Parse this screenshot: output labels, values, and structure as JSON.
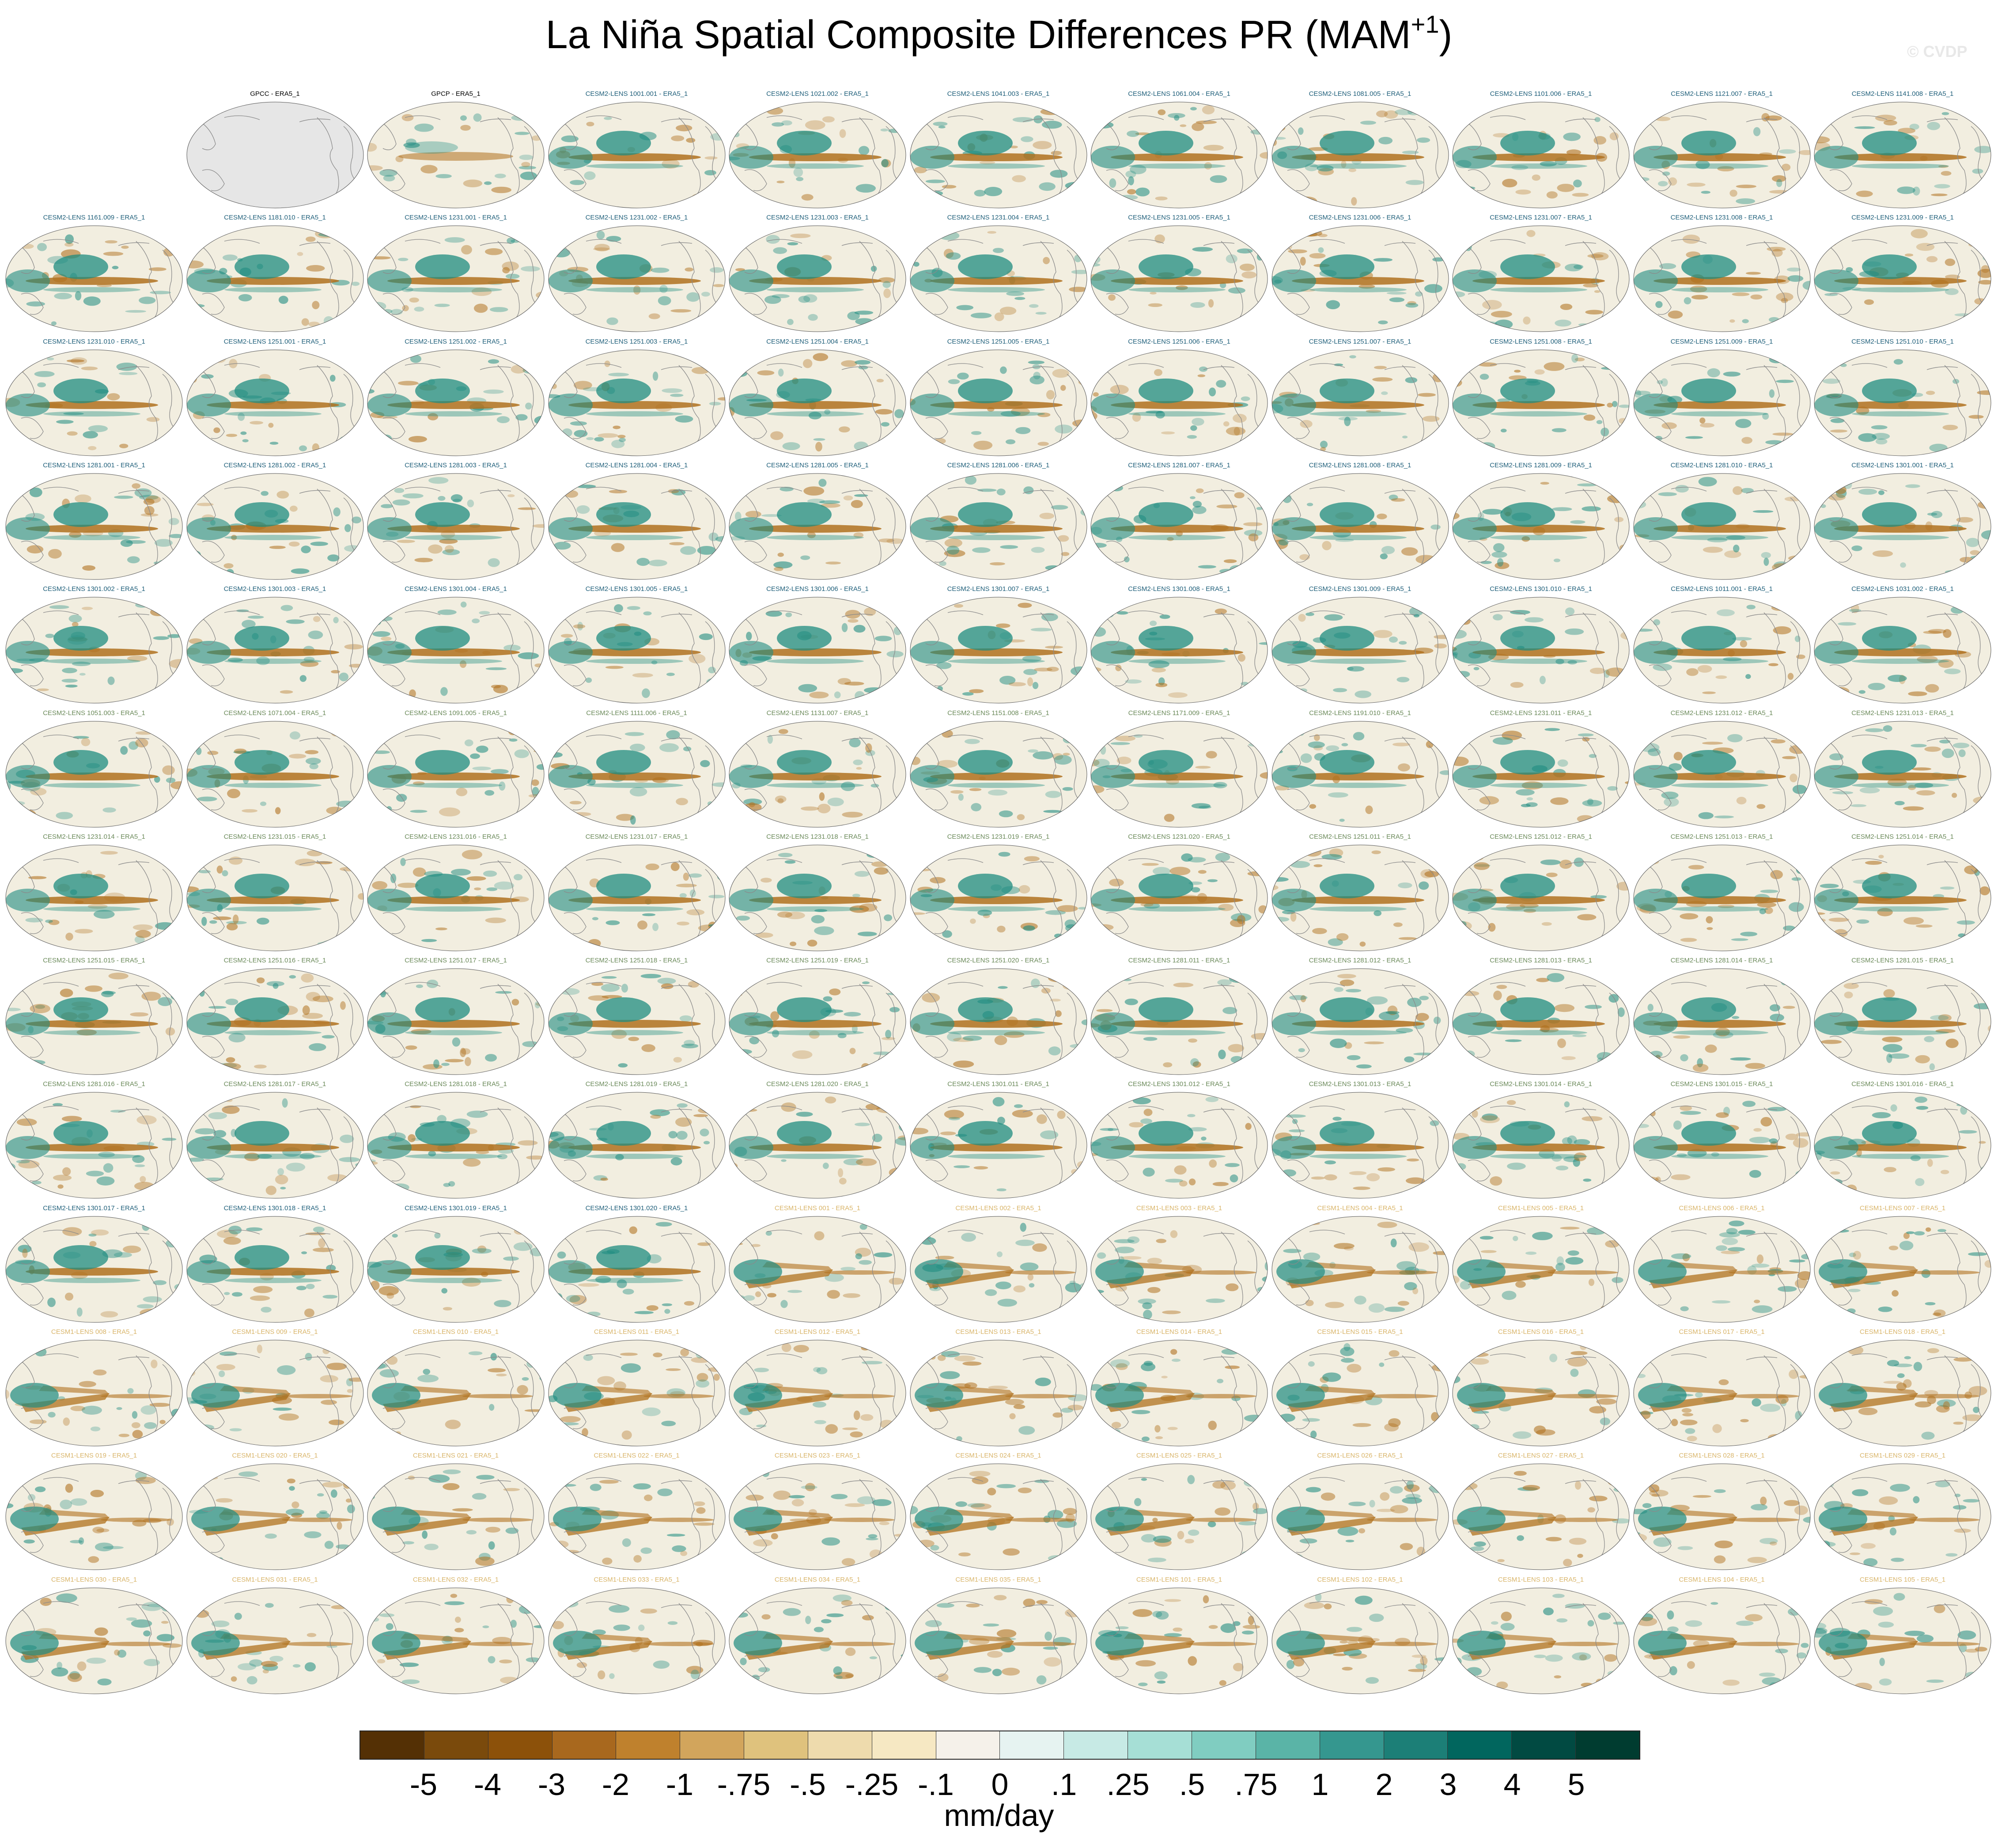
{
  "figure": {
    "title_text": "La Niña Spatial Composite Differences PR (MAM",
    "title_superscript": "+1",
    "title_close": ")",
    "watermark": "© CVDP"
  },
  "panel_titles": [
    "",
    "GPCC - ERA5_1",
    "GPCP - ERA5_1",
    "CESM2-LENS 1001.001 - ERA5_1",
    "CESM2-LENS 1021.002 - ERA5_1",
    "CESM2-LENS 1041.003 - ERA5_1",
    "CESM2-LENS 1061.004 - ERA5_1",
    "CESM2-LENS 1081.005 - ERA5_1",
    "CESM2-LENS 1101.006 - ERA5_1",
    "CESM2-LENS 1121.007 - ERA5_1",
    "CESM2-LENS 1141.008 - ERA5_1",
    "CESM2-LENS 1161.009 - ERA5_1",
    "CESM2-LENS 1181.010 - ERA5_1",
    "CESM2-LENS 1231.001 - ERA5_1",
    "CESM2-LENS 1231.002 - ERA5_1",
    "CESM2-LENS 1231.003 - ERA5_1",
    "CESM2-LENS 1231.004 - ERA5_1",
    "CESM2-LENS 1231.005 - ERA5_1",
    "CESM2-LENS 1231.006 - ERA5_1",
    "CESM2-LENS 1231.007 - ERA5_1",
    "CESM2-LENS 1231.008 - ERA5_1",
    "CESM2-LENS 1231.009 - ERA5_1",
    "CESM2-LENS 1231.010 - ERA5_1",
    "CESM2-LENS 1251.001 - ERA5_1",
    "CESM2-LENS 1251.002 - ERA5_1",
    "CESM2-LENS 1251.003 - ERA5_1",
    "CESM2-LENS 1251.004 - ERA5_1",
    "CESM2-LENS 1251.005 - ERA5_1",
    "CESM2-LENS 1251.006 - ERA5_1",
    "CESM2-LENS 1251.007 - ERA5_1",
    "CESM2-LENS 1251.008 - ERA5_1",
    "CESM2-LENS 1251.009 - ERA5_1",
    "CESM2-LENS 1251.010 - ERA5_1",
    "CESM2-LENS 1281.001 - ERA5_1",
    "CESM2-LENS 1281.002 - ERA5_1",
    "CESM2-LENS 1281.003 - ERA5_1",
    "CESM2-LENS 1281.004 - ERA5_1",
    "CESM2-LENS 1281.005 - ERA5_1",
    "CESM2-LENS 1281.006 - ERA5_1",
    "CESM2-LENS 1281.007 - ERA5_1",
    "CESM2-LENS 1281.008 - ERA5_1",
    "CESM2-LENS 1281.009 - ERA5_1",
    "CESM2-LENS 1281.010 - ERA5_1",
    "CESM2-LENS 1301.001 - ERA5_1",
    "CESM2-LENS 1301.002 - ERA5_1",
    "CESM2-LENS 1301.003 - ERA5_1",
    "CESM2-LENS 1301.004 - ERA5_1",
    "CESM2-LENS 1301.005 - ERA5_1",
    "CESM2-LENS 1301.006 - ERA5_1",
    "CESM2-LENS 1301.007 - ERA5_1",
    "CESM2-LENS 1301.008 - ERA5_1",
    "CESM2-LENS 1301.009 - ERA5_1",
    "CESM2-LENS 1301.010 - ERA5_1",
    "CESM2-LENS 1011.001 - ERA5_1",
    "CESM2-LENS 1031.002 - ERA5_1",
    "CESM2-LENS 1051.003 - ERA5_1",
    "CESM2-LENS 1071.004 - ERA5_1",
    "CESM2-LENS 1091.005 - ERA5_1",
    "CESM2-LENS 1111.006 - ERA5_1",
    "CESM2-LENS 1131.007 - ERA5_1",
    "CESM2-LENS 1151.008 - ERA5_1",
    "CESM2-LENS 1171.009 - ERA5_1",
    "CESM2-LENS 1191.010 - ERA5_1",
    "CESM2-LENS 1231.011 - ERA5_1",
    "CESM2-LENS 1231.012 - ERA5_1",
    "CESM2-LENS 1231.013 - ERA5_1",
    "CESM2-LENS 1231.014 - ERA5_1",
    "CESM2-LENS 1231.015 - ERA5_1",
    "CESM2-LENS 1231.016 - ERA5_1",
    "CESM2-LENS 1231.017 - ERA5_1",
    "CESM2-LENS 1231.018 - ERA5_1",
    "CESM2-LENS 1231.019 - ERA5_1",
    "CESM2-LENS 1231.020 - ERA5_1",
    "CESM2-LENS 1251.011 - ERA5_1",
    "CESM2-LENS 1251.012 - ERA5_1",
    "CESM2-LENS 1251.013 - ERA5_1",
    "CESM2-LENS 1251.014 - ERA5_1",
    "CESM2-LENS 1251.015 - ERA5_1",
    "CESM2-LENS 1251.016 - ERA5_1",
    "CESM2-LENS 1251.017 - ERA5_1",
    "CESM2-LENS 1251.018 - ERA5_1",
    "CESM2-LENS 1251.019 - ERA5_1",
    "CESM2-LENS 1251.020 - ERA5_1",
    "CESM2-LENS 1281.011 - ERA5_1",
    "CESM2-LENS 1281.012 - ERA5_1",
    "CESM2-LENS 1281.013 - ERA5_1",
    "CESM2-LENS 1281.014 - ERA5_1",
    "CESM2-LENS 1281.015 - ERA5_1",
    "CESM2-LENS 1281.016 - ERA5_1",
    "CESM2-LENS 1281.017 - ERA5_1",
    "CESM2-LENS 1281.018 - ERA5_1",
    "CESM2-LENS 1281.019 - ERA5_1",
    "CESM2-LENS 1281.020 - ERA5_1",
    "CESM2-LENS 1301.011 - ERA5_1",
    "CESM2-LENS 1301.012 - ERA5_1",
    "CESM2-LENS 1301.013 - ERA5_1",
    "CESM2-LENS 1301.014 - ERA5_1",
    "CESM2-LENS 1301.015 - ERA5_1",
    "CESM2-LENS 1301.016 - ERA5_1",
    "CESM2-LENS 1301.017 - ERA5_1",
    "CESM2-LENS 1301.018 - ERA5_1",
    "CESM2-LENS 1301.019 - ERA5_1",
    "CESM2-LENS 1301.020 - ERA5_1",
    "CESM1-LENS 001 - ERA5_1",
    "CESM1-LENS 002 - ERA5_1",
    "CESM1-LENS 003 - ERA5_1",
    "CESM1-LENS 004 - ERA5_1",
    "CESM1-LENS 005 - ERA5_1",
    "CESM1-LENS 006 - ERA5_1",
    "CESM1-LENS 007 - ERA5_1",
    "CESM1-LENS 008 - ERA5_1",
    "CESM1-LENS 009 - ERA5_1",
    "CESM1-LENS 010 - ERA5_1",
    "CESM1-LENS 011 - ERA5_1",
    "CESM1-LENS 012 - ERA5_1",
    "CESM1-LENS 013 - ERA5_1",
    "CESM1-LENS 014 - ERA5_1",
    "CESM1-LENS 015 - ERA5_1",
    "CESM1-LENS 016 - ERA5_1",
    "CESM1-LENS 017 - ERA5_1",
    "CESM1-LENS 018 - ERA5_1",
    "CESM1-LENS 019 - ERA5_1",
    "CESM1-LENS 020 - ERA5_1",
    "CESM1-LENS 021 - ERA5_1",
    "CESM1-LENS 022 - ERA5_1",
    "CESM1-LENS 023 - ERA5_1",
    "CESM1-LENS 024 - ERA5_1",
    "CESM1-LENS 025 - ERA5_1",
    "CESM1-LENS 026 - ERA5_1",
    "CESM1-LENS 027 - ERA5_1",
    "CESM1-LENS 028 - ERA5_1",
    "CESM1-LENS 029 - ERA5_1",
    "CESM1-LENS 030 - ERA5_1",
    "CESM1-LENS 031 - ERA5_1",
    "CESM1-LENS 032 - ERA5_1",
    "CESM1-LENS 033 - ERA5_1",
    "CESM1-LENS 034 - ERA5_1",
    "CESM1-LENS 035 - ERA5_1",
    "CESM1-LENS 101 - ERA5_1",
    "CESM1-LENS 102 - ERA5_1",
    "CESM1-LENS 103 - ERA5_1",
    "CESM1-LENS 104 - ERA5_1",
    "CESM1-LENS 105 - ERA5_1"
  ],
  "title_colors": {
    "obs": "#000000",
    "cesm2": "#1f5f7a",
    "cesm2_smbb": "#6b8a5a",
    "cesm1": "#d9b56a"
  },
  "colorbar": {
    "units": "mm/day",
    "labels": [
      "-5",
      "-4",
      "-3",
      "-2",
      "-1",
      "-.75",
      "-.5",
      "-.25",
      "-.1",
      "0",
      ".1",
      ".25",
      ".5",
      ".75",
      "1",
      "2",
      "3",
      "4",
      "5"
    ],
    "colors": [
      "#543005",
      "#7a4a0c",
      "#8c510a",
      "#a8681e",
      "#bf812d",
      "#d2a55c",
      "#dfc27d",
      "#eedbad",
      "#f6e8c3",
      "#f5f1ea",
      "#e6f3f1",
      "#c7eae5",
      "#a6dfd6",
      "#80cdc1",
      "#5ab4a7",
      "#35978f",
      "#1c7f77",
      "#01665e",
      "#014a42",
      "#003c30"
    ]
  },
  "map_colors": {
    "ocean": "#f2eee0",
    "ocean_gpcc": "#e6e6e6",
    "coast": "#8a8a8a",
    "dry": "#b0711e",
    "wet": "#1f8c80"
  }
}
